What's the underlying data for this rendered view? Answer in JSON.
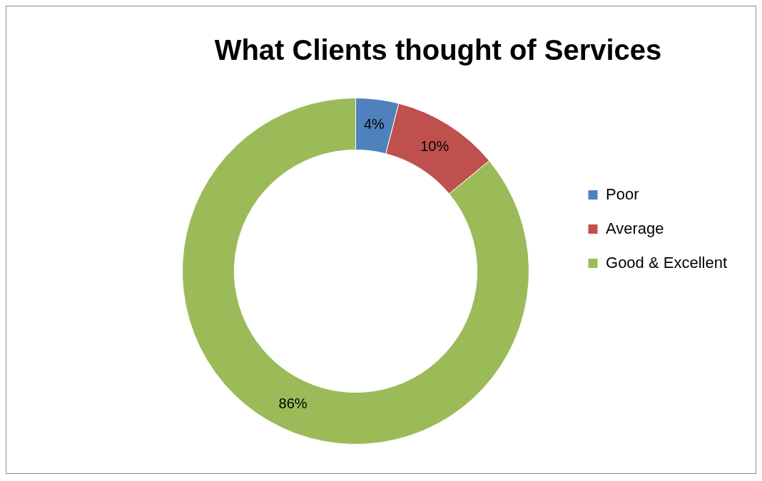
{
  "chart_data": {
    "type": "donut",
    "title": "What Clients thought of Services",
    "categories": [
      "Poor",
      "Average",
      "Good & Excellent"
    ],
    "values": [
      4,
      10,
      86
    ],
    "colors": [
      "#4f81bd",
      "#c0504d",
      "#9bbb59"
    ],
    "value_labels": [
      "4%",
      "10%",
      "86%"
    ],
    "legend": "right"
  }
}
